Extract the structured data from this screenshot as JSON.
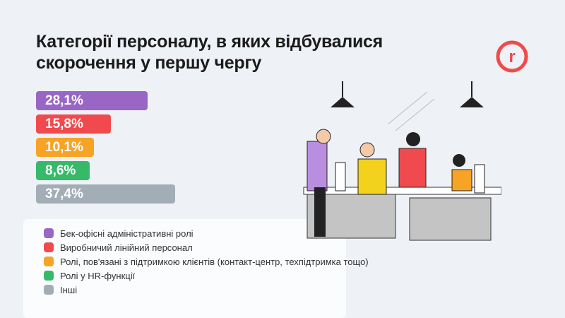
{
  "title_line1": "Категорії персоналу, в яких відбувалися",
  "title_line2": "скорочення у першу чергу",
  "logo_text": "r",
  "colors": {
    "background": "#eef1f6",
    "brand": "#ef4b4b"
  },
  "chart_data": {
    "type": "bar",
    "orientation": "horizontal",
    "categories": [
      "Бек-офісні адміністративні ролі",
      "Виробничий лінійний персонал",
      "Ролі, пов'язані з підтримкою клієнтів (контакт-центр, техпідтримка тощо)",
      "Ролі у HR-функції",
      "Інші"
    ],
    "values": [
      28.1,
      15.8,
      10.1,
      8.6,
      37.4
    ],
    "labels": [
      "28,1%",
      "15,8%",
      "10,1%",
      "8,6%",
      "37,4%"
    ],
    "colors": [
      "#9a66c6",
      "#f04a4f",
      "#f6a326",
      "#37b96a",
      "#a3adb6"
    ],
    "legend_position": "bottom-left",
    "unit": "%"
  }
}
